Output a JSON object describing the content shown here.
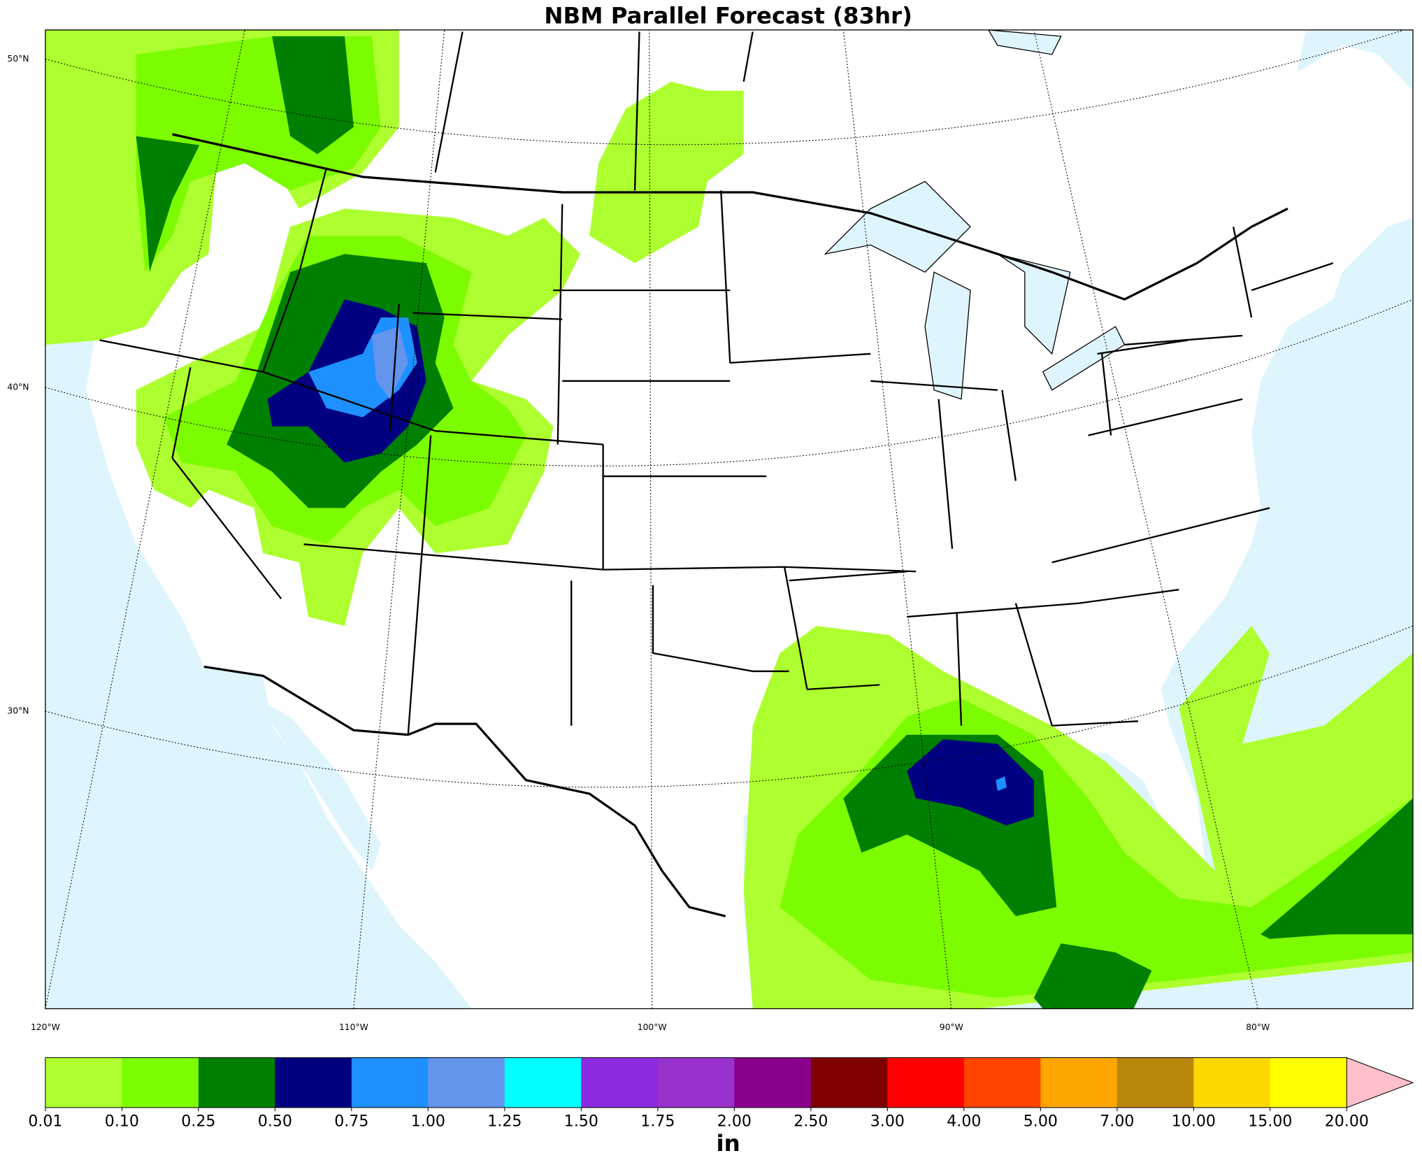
{
  "title": "NBM Parallel Forecast (83hr)",
  "map": {
    "lat_labels": [
      "50°N",
      "40°N",
      "30°N"
    ],
    "lon_labels": [
      "120°W",
      "110°W",
      "100°W",
      "90°W",
      "80°W"
    ]
  },
  "colorbar": {
    "ticks": [
      0.01,
      {
        "value": 0.1,
        "label": "0.10"
      },
      0.25,
      {
        "value": 0.5,
        "label": "0.50"
      },
      0.75,
      {
        "value": 1,
        "label": "1.00"
      },
      1.25,
      {
        "value": 1.5,
        "label": "1.50"
      },
      1.75,
      {
        "value": 2,
        "label": "2.00"
      },
      {
        "value": 2.5,
        "label": "2.50"
      },
      {
        "value": 3,
        "label": "3.00"
      },
      {
        "value": 4,
        "label": "4.00"
      },
      {
        "value": 5,
        "label": "5.00"
      },
      {
        "value": 7,
        "label": "7.00"
      },
      {
        "value": 10,
        "label": "10.00"
      },
      {
        "value": 15,
        "label": "15.00"
      },
      {
        "value": 20,
        "label": "20.00"
      }
    ],
    "colors": [
      "#adff2f",
      "#7cfc00",
      "#007f00",
      "#000080",
      "#1e90ff",
      "#6495ed",
      "#00ffff",
      "#8a2be2",
      "#9932cc",
      "#8b008b",
      "#800000",
      "#ff0000",
      "#ff4500",
      "#ffa500",
      "#b8860b",
      "#ffd700",
      "#ffff00"
    ],
    "extend_color": "#ffc0cb",
    "label": "in"
  }
}
